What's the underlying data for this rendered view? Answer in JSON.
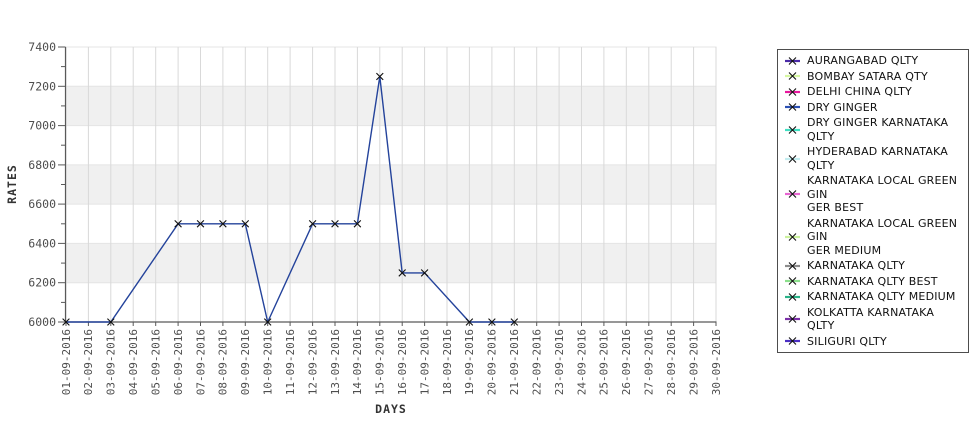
{
  "chart_data": {
    "type": "line",
    "title": "",
    "xlabel": "DAYS",
    "ylabel": "RATES",
    "x": [
      "01-09-2016",
      "02-09-2016",
      "03-09-2016",
      "04-09-2016",
      "05-09-2016",
      "06-09-2016",
      "07-09-2016",
      "08-09-2016",
      "09-09-2016",
      "10-09-2016",
      "11-09-2016",
      "12-09-2016",
      "13-09-2016",
      "14-09-2016",
      "15-09-2016",
      "16-09-2016",
      "17-09-2016",
      "18-09-2016",
      "19-09-2016",
      "20-09-2016",
      "21-09-2016",
      "22-09-2016",
      "23-09-2016",
      "24-09-2016",
      "25-09-2016",
      "26-09-2016",
      "27-09-2016",
      "28-09-2016",
      "29-09-2016",
      "30-09-2016"
    ],
    "ylim": [
      6000,
      7400
    ],
    "y_tick_step": 200,
    "y_minor_step": 100,
    "grid": true,
    "legend_position": "right",
    "gray_bands": [
      [
        6200,
        6400
      ],
      [
        6600,
        6800
      ],
      [
        7000,
        7200
      ]
    ],
    "series": [
      {
        "name": "DRY GINGER",
        "color": "#24439b",
        "marker": "x",
        "points": [
          [
            "01-09-2016",
            6000
          ],
          [
            "03-09-2016",
            6000
          ],
          [
            "06-09-2016",
            6500
          ],
          [
            "07-09-2016",
            6500
          ],
          [
            "08-09-2016",
            6500
          ],
          [
            "09-09-2016",
            6500
          ],
          [
            "10-09-2016",
            6000
          ],
          [
            "12-09-2016",
            6500
          ],
          [
            "13-09-2016",
            6500
          ],
          [
            "14-09-2016",
            6500
          ],
          [
            "15-09-2016",
            7250
          ],
          [
            "16-09-2016",
            6250
          ],
          [
            "17-09-2016",
            6250
          ],
          [
            "19-09-2016",
            6000
          ],
          [
            "20-09-2016",
            6000
          ],
          [
            "21-09-2016",
            6000
          ]
        ]
      }
    ]
  },
  "legend": {
    "items": [
      {
        "label": "AURANGABAD QLTY",
        "color": "#4a2aa8"
      },
      {
        "label": "BOMBAY SATARA QTY",
        "color": "#d6f7a2"
      },
      {
        "label": "DELHI CHINA QLTY",
        "color": "#e8189e"
      },
      {
        "label": "DRY GINGER",
        "color": "#2b50b4"
      },
      {
        "label": "DRY GINGER KARNATAKA QLTY",
        "color": "#3fe0c2"
      },
      {
        "label": "HYDERABAD KARNATAKA QLTY",
        "color": "#c3edf0"
      },
      {
        "label": "KARNATAKA LOCAL GREEN GIN\nGER BEST",
        "color": "#e766d2"
      },
      {
        "label": "KARNATAKA LOCAL GREEN GIN\nGER MEDIUM",
        "color": "#cbf19d"
      },
      {
        "label": "KARNATAKA QLTY",
        "color": "#8c8c8c"
      },
      {
        "label": "KARNATAKA QLTY BEST",
        "color": "#8ce08c"
      },
      {
        "label": "KARNATAKA QLTY MEDIUM",
        "color": "#2ab388"
      },
      {
        "label": "KOLKATTA KARNATAKA QLTY",
        "color": "#7b2fa8"
      },
      {
        "label": "SILIGURI QLTY",
        "color": "#4b2fc4"
      }
    ]
  },
  "colors": {
    "series_line": "#24439b",
    "marker": "#111111",
    "band_gray": "#f0f0f0",
    "grid_vertical": "#d9d9d9",
    "grid_horizontal": "#e4e4e4",
    "axis": "#595959",
    "tick_text": "#4d4d4d",
    "axis_title_text": "#333333"
  }
}
